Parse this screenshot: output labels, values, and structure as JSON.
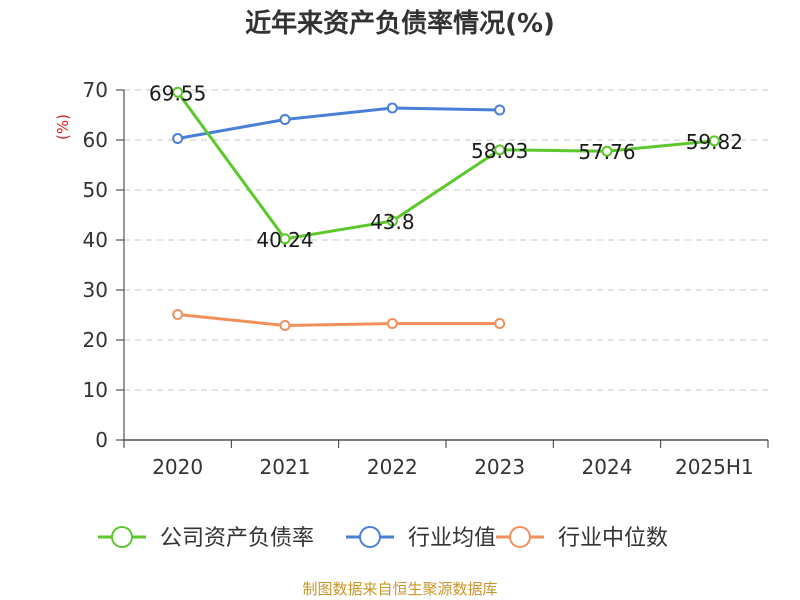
{
  "chart_data": {
    "type": "line",
    "title": "近年来资产负债率情况(%)",
    "ylabel": "(%)",
    "categories": [
      "2020",
      "2021",
      "2022",
      "2023",
      "2024",
      "2025H1"
    ],
    "yticks": [
      "0",
      "10",
      "20",
      "30",
      "40",
      "50",
      "60",
      "70"
    ],
    "ylim": [
      0,
      70
    ],
    "grid": true,
    "legend_position": "bottom",
    "series": [
      {
        "name": "公司资产负债率",
        "color": "#5cc82a",
        "values": [
          69.55,
          40.24,
          43.8,
          58.03,
          57.76,
          59.82
        ],
        "labels": [
          "69.55",
          "40.24",
          "43.8",
          "58.03",
          "57.76",
          "59.82"
        ]
      },
      {
        "name": "行业均值",
        "color": "#4a7fd8",
        "values": [
          60.3,
          64.1,
          66.4,
          66.0,
          null,
          null
        ]
      },
      {
        "name": "行业中位数",
        "color": "#f2905a",
        "values": [
          25.1,
          22.9,
          23.3,
          23.3,
          null,
          null
        ]
      }
    ],
    "source": "制图数据来自恒生聚源数据库"
  }
}
